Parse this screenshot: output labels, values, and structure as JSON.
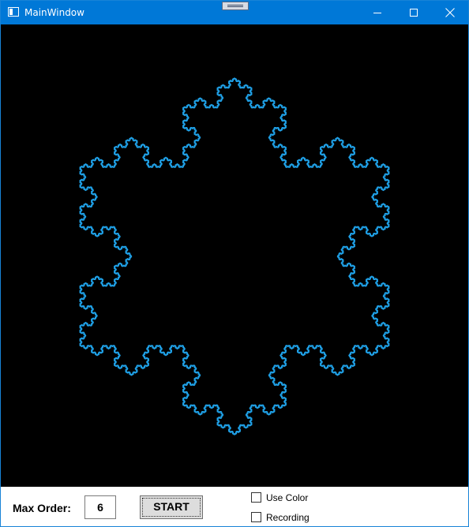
{
  "window": {
    "title": "MainWindow",
    "icons": {
      "app": "app-window-icon",
      "minimize": "minimize-icon",
      "maximize": "maximize-icon",
      "close": "close-icon",
      "drag": "drag-handle-icon"
    }
  },
  "canvas": {
    "background": "#000000",
    "fractal": "koch-snowflake",
    "stroke_color": "#1fa0e6"
  },
  "controls": {
    "max_order_label": "Max Order:",
    "max_order_value": "6",
    "start_label": "START",
    "use_color_label": "Use Color",
    "use_color_checked": false,
    "recording_label": "Recording",
    "recording_checked": false
  }
}
